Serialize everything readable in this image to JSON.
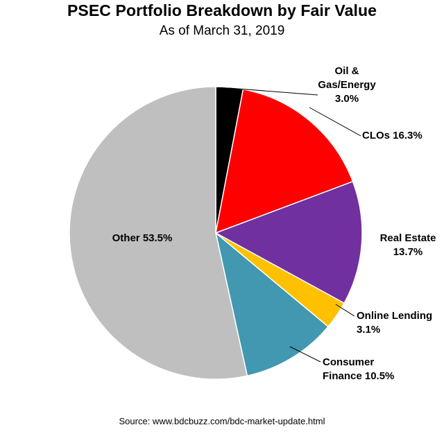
{
  "header": {
    "title": "PSEC Portfolio Breakdown by Fair Value",
    "subtitle": "As of March 31, 2019"
  },
  "footer": {
    "source": "Source: www.bdcbuzz.com/bdc-market-update.html"
  },
  "chart_data": {
    "type": "pie",
    "title": "PSEC Portfolio Breakdown by Fair Value",
    "subtitle": "As of March 31, 2019",
    "direction": "clockwise",
    "start": "12 o'clock",
    "slices": [
      {
        "name": "Oil & Gas/Energy",
        "value": 3.0,
        "color": "#000000",
        "label_lines": [
          "Oil &",
          "Gas/Energy",
          "3.0%"
        ]
      },
      {
        "name": "CLOs",
        "value": 16.3,
        "color": "#ff0000",
        "label_lines": [
          "CLOs 16.3%"
        ]
      },
      {
        "name": "Real Estate",
        "value": 13.7,
        "color": "#7030a0",
        "label_lines": [
          "Real Estate",
          "13.7%"
        ]
      },
      {
        "name": "Online Lending",
        "value": 3.1,
        "color": "#ffc000",
        "label_lines": [
          "Online Lending",
          "3.1%"
        ]
      },
      {
        "name": "Consumer Finance",
        "value": 10.5,
        "color": "#4198b0",
        "label_lines": [
          "Consumer",
          "Finance 10.5%"
        ]
      },
      {
        "name": "Other",
        "value": 53.5,
        "color": "#bfbfbf",
        "label_lines": [
          "Other 53.5%"
        ]
      }
    ]
  }
}
